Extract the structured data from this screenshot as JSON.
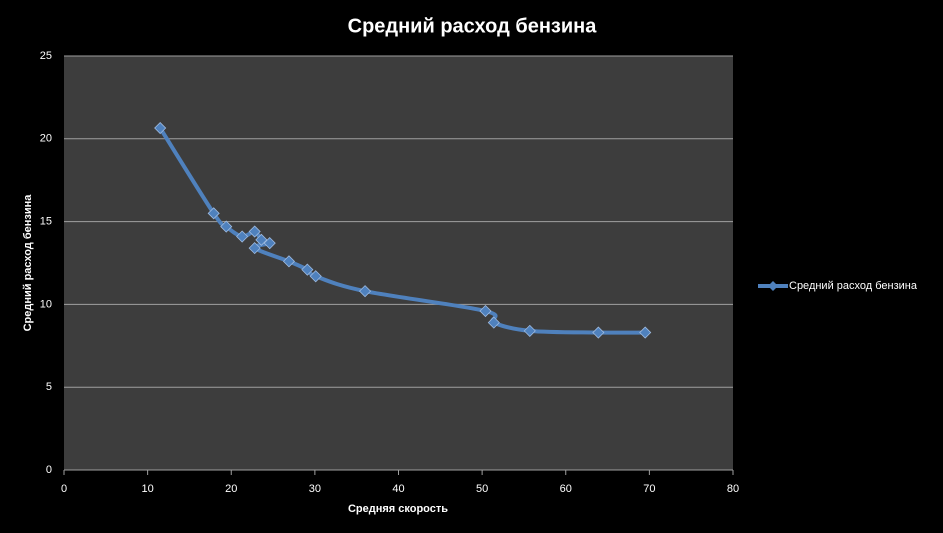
{
  "chart_data": {
    "type": "scatter",
    "title": "Средний расход бензина",
    "xlabel": "Средняя скорость",
    "ylabel": "Средний расход бензина",
    "x": [
      11.5,
      17.9,
      19.4,
      21.3,
      22.8,
      23.6,
      24.6,
      22.8,
      26.9,
      29.1,
      30.1,
      36.0,
      50.4,
      51.4,
      55.7,
      63.9,
      69.5
    ],
    "series": [
      {
        "name": "Средний расход бензина",
        "color": "#4f81bd",
        "values": [
          20.65,
          15.5,
          14.7,
          14.1,
          14.4,
          13.9,
          13.7,
          13.4,
          12.6,
          12.1,
          11.7,
          10.8,
          9.6,
          8.9,
          8.4,
          8.3,
          8.3
        ]
      }
    ],
    "xlim": [
      0,
      80
    ],
    "xticks": [
      0,
      10,
      20,
      30,
      40,
      50,
      60,
      70,
      80
    ],
    "ylim": [
      0,
      25
    ],
    "yticks": [
      0,
      5,
      10,
      15,
      20,
      25
    ],
    "grid": true,
    "smooth": true,
    "legend": "right"
  }
}
